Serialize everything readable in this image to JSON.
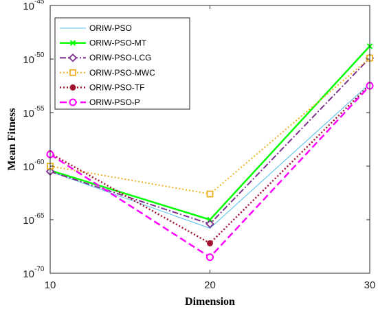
{
  "chart_data": {
    "type": "line",
    "title": "",
    "xlabel": "Dimension",
    "ylabel": "Mean Fitness",
    "x": [
      10,
      20,
      30
    ],
    "xlim": [
      10,
      30
    ],
    "xticks": [
      "10",
      "20",
      "30"
    ],
    "yscale": "log",
    "ylim_exponents": [
      -70,
      -45
    ],
    "ytick_exponents": [
      -70,
      -65,
      -60,
      -55,
      -50,
      -45
    ],
    "ytick_base": "10",
    "grid": false,
    "legend_position": "top-left",
    "series": [
      {
        "name": "ORIW-PSO",
        "exponents": [
          -60.5,
          -65.8,
          -52.3
        ],
        "color": "#4DBEEE",
        "dash": "",
        "marker": "none",
        "width": 1
      },
      {
        "name": "ORIW-PSO-MT",
        "exponents": [
          -60.4,
          -65.0,
          -48.8
        ],
        "color": "#00FF00",
        "dash": "",
        "marker": "x",
        "width": 2.5
      },
      {
        "name": "ORIW-PSO-LCG",
        "exponents": [
          -60.5,
          -65.4,
          -49.9
        ],
        "color": "#7E2F8E",
        "dash": "9,3,2,3",
        "marker": "diamond",
        "width": 2
      },
      {
        "name": "ORIW-PSO-MWC",
        "exponents": [
          -60.0,
          -62.6,
          -49.9
        ],
        "color": "#EDB120",
        "dash": "2,3",
        "marker": "square",
        "width": 2
      },
      {
        "name": "ORIW-PSO-TF",
        "exponents": [
          -58.8,
          -67.2,
          -52.4
        ],
        "color": "#A2142F",
        "dash": "2,3",
        "marker": "dot",
        "width": 2.5
      },
      {
        "name": "ORIW-PSO-P",
        "exponents": [
          -58.9,
          -68.5,
          -52.5
        ],
        "color": "#FF00FF",
        "dash": "10,5",
        "marker": "circle",
        "width": 2.5
      }
    ]
  }
}
